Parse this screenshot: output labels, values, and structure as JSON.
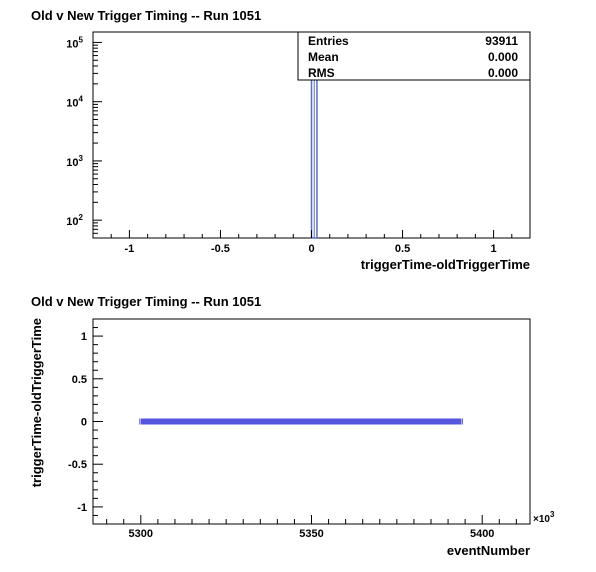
{
  "chart_data": [
    {
      "type": "histogram",
      "title": "Old v New Trigger Timing -- Run 1051",
      "xlabel": "triggerTime-oldTriggerTime",
      "ylabel": "",
      "xlim": [
        -1.2,
        1.2
      ],
      "ylim": [
        50,
        150000
      ],
      "yscale": "log",
      "xticks": [
        "-1",
        "-0.5",
        "0",
        "0.5",
        "1"
      ],
      "yticks": [
        {
          "base": "10",
          "exp": "2",
          "value": 100
        },
        {
          "base": "10",
          "exp": "3",
          "value": 1000
        },
        {
          "base": "10",
          "exp": "4",
          "value": 10000
        },
        {
          "base": "10",
          "exp": "5",
          "value": 100000
        }
      ],
      "bins": [
        {
          "x_low": 0.0,
          "x_high": 0.03,
          "count": 93911
        }
      ],
      "color": "#5a6fc0",
      "stats": [
        {
          "label": "Entries",
          "value": "93911"
        },
        {
          "label": "Mean",
          "value": "0.000"
        },
        {
          "label": "RMS",
          "value": "0.000"
        }
      ]
    },
    {
      "type": "scatter",
      "title": "Old v New Trigger Timing -- Run 1051",
      "xlabel": "eventNumber",
      "ylabel": "triggerTime-oldTriggerTime",
      "xlim": [
        5286,
        5414
      ],
      "ylim": [
        -1.2,
        1.2
      ],
      "x_multiplier": "×10",
      "x_multiplier_exp": "3",
      "xticks": [
        5300,
        5350,
        5400
      ],
      "yticks": [
        "1",
        "0.5",
        "0",
        "-0.5",
        "-1"
      ],
      "series": [
        {
          "x_range": [
            5300,
            5393.9
          ],
          "y": 0,
          "count": 93911,
          "color": "#5555dd"
        }
      ]
    }
  ]
}
